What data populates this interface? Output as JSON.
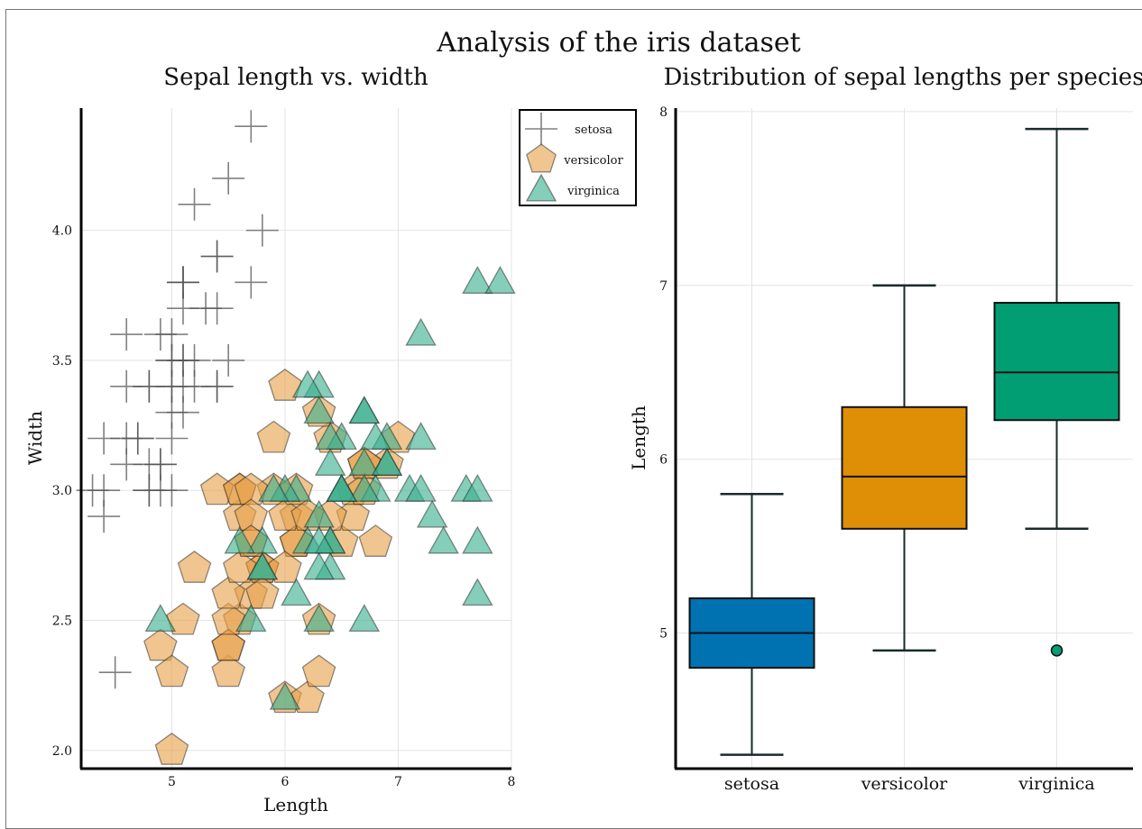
{
  "title": "Analysis of the iris dataset",
  "colors": {
    "setosa": "#555555",
    "versicolor": "#e6a14a",
    "virginica": "#3ab08e",
    "box_setosa": "#0072b2",
    "box_versicolor": "#de8f05",
    "box_virginica": "#029e73"
  },
  "chart_data": [
    {
      "type": "scatter",
      "title": "Sepal length vs. width",
      "xlabel": "Length",
      "ylabel": "Width",
      "xlim": [
        4.2,
        8.0
      ],
      "ylim": [
        1.93,
        4.47
      ],
      "xticks": [
        5,
        6,
        7,
        8
      ],
      "yticks": [
        2.0,
        2.5,
        3.0,
        3.5,
        4.0
      ],
      "xtick_labels": [
        "5",
        "6",
        "7",
        "8"
      ],
      "ytick_labels": [
        "2.0",
        "2.5",
        "3.0",
        "3.5",
        "4.0"
      ],
      "grid": true,
      "legend": "top-right",
      "series": [
        {
          "name": "setosa",
          "marker": "cross",
          "points": [
            [
              5.1,
              3.5
            ],
            [
              4.9,
              3.0
            ],
            [
              4.7,
              3.2
            ],
            [
              4.6,
              3.1
            ],
            [
              5.0,
              3.6
            ],
            [
              5.4,
              3.9
            ],
            [
              4.6,
              3.4
            ],
            [
              5.0,
              3.4
            ],
            [
              4.4,
              2.9
            ],
            [
              4.9,
              3.1
            ],
            [
              5.4,
              3.7
            ],
            [
              4.8,
              3.4
            ],
            [
              4.8,
              3.0
            ],
            [
              4.3,
              3.0
            ],
            [
              5.8,
              4.0
            ],
            [
              5.7,
              4.4
            ],
            [
              5.4,
              3.9
            ],
            [
              5.1,
              3.5
            ],
            [
              5.7,
              3.8
            ],
            [
              5.1,
              3.8
            ],
            [
              5.4,
              3.4
            ],
            [
              5.1,
              3.7
            ],
            [
              4.6,
              3.6
            ],
            [
              5.1,
              3.3
            ],
            [
              4.8,
              3.4
            ],
            [
              5.0,
              3.0
            ],
            [
              5.0,
              3.4
            ],
            [
              5.2,
              3.5
            ],
            [
              5.2,
              3.4
            ],
            [
              4.7,
              3.2
            ],
            [
              4.8,
              3.1
            ],
            [
              5.4,
              3.4
            ],
            [
              5.2,
              4.1
            ],
            [
              5.5,
              4.2
            ],
            [
              4.9,
              3.1
            ],
            [
              5.0,
              3.2
            ],
            [
              5.5,
              3.5
            ],
            [
              4.9,
              3.6
            ],
            [
              4.4,
              3.0
            ],
            [
              5.1,
              3.4
            ],
            [
              5.0,
              3.5
            ],
            [
              4.5,
              2.3
            ],
            [
              4.4,
              3.2
            ],
            [
              5.0,
              3.5
            ],
            [
              5.1,
              3.8
            ],
            [
              4.8,
              3.0
            ],
            [
              5.1,
              3.8
            ],
            [
              4.6,
              3.2
            ],
            [
              5.3,
              3.7
            ],
            [
              5.0,
              3.3
            ]
          ]
        },
        {
          "name": "versicolor",
          "marker": "pentagon",
          "points": [
            [
              7.0,
              3.2
            ],
            [
              6.4,
              3.2
            ],
            [
              6.9,
              3.1
            ],
            [
              5.5,
              2.3
            ],
            [
              6.5,
              2.8
            ],
            [
              5.7,
              2.8
            ],
            [
              6.3,
              3.3
            ],
            [
              4.9,
              2.4
            ],
            [
              6.6,
              2.9
            ],
            [
              5.2,
              2.7
            ],
            [
              5.0,
              2.0
            ],
            [
              5.9,
              3.0
            ],
            [
              6.0,
              2.2
            ],
            [
              6.1,
              2.9
            ],
            [
              5.6,
              2.9
            ],
            [
              6.7,
              3.1
            ],
            [
              5.6,
              3.0
            ],
            [
              5.8,
              2.7
            ],
            [
              6.2,
              2.2
            ],
            [
              5.6,
              2.5
            ],
            [
              5.9,
              3.2
            ],
            [
              6.1,
              2.8
            ],
            [
              6.3,
              2.5
            ],
            [
              6.1,
              2.8
            ],
            [
              6.4,
              2.9
            ],
            [
              6.6,
              3.0
            ],
            [
              6.8,
              2.8
            ],
            [
              6.7,
              3.0
            ],
            [
              6.0,
              2.9
            ],
            [
              5.7,
              2.6
            ],
            [
              5.5,
              2.4
            ],
            [
              5.5,
              2.4
            ],
            [
              5.8,
              2.7
            ],
            [
              6.0,
              2.7
            ],
            [
              5.4,
              3.0
            ],
            [
              6.0,
              3.4
            ],
            [
              6.7,
              3.1
            ],
            [
              6.3,
              2.3
            ],
            [
              5.6,
              3.0
            ],
            [
              5.5,
              2.5
            ],
            [
              5.5,
              2.6
            ],
            [
              6.1,
              3.0
            ],
            [
              5.8,
              2.6
            ],
            [
              5.0,
              2.3
            ],
            [
              5.6,
              2.7
            ],
            [
              5.7,
              3.0
            ],
            [
              5.7,
              2.9
            ],
            [
              6.2,
              2.9
            ],
            [
              5.1,
              2.5
            ],
            [
              5.7,
              2.8
            ]
          ]
        },
        {
          "name": "virginica",
          "marker": "triangle",
          "points": [
            [
              6.3,
              3.3
            ],
            [
              5.8,
              2.7
            ],
            [
              7.1,
              3.0
            ],
            [
              6.3,
              2.9
            ],
            [
              6.5,
              3.0
            ],
            [
              7.6,
              3.0
            ],
            [
              4.9,
              2.5
            ],
            [
              7.3,
              2.9
            ],
            [
              6.7,
              2.5
            ],
            [
              7.2,
              3.6
            ],
            [
              6.5,
              3.2
            ],
            [
              6.4,
              2.7
            ],
            [
              6.8,
              3.0
            ],
            [
              5.7,
              2.5
            ],
            [
              5.8,
              2.8
            ],
            [
              6.4,
              3.2
            ],
            [
              6.5,
              3.0
            ],
            [
              7.7,
              3.8
            ],
            [
              7.7,
              2.6
            ],
            [
              6.0,
              2.2
            ],
            [
              6.9,
              3.2
            ],
            [
              5.6,
              2.8
            ],
            [
              7.7,
              2.8
            ],
            [
              6.3,
              2.7
            ],
            [
              6.7,
              3.3
            ],
            [
              7.2,
              3.2
            ],
            [
              6.2,
              2.8
            ],
            [
              6.1,
              3.0
            ],
            [
              6.4,
              2.8
            ],
            [
              7.2,
              3.0
            ],
            [
              7.4,
              2.8
            ],
            [
              7.9,
              3.8
            ],
            [
              6.4,
              2.8
            ],
            [
              6.3,
              2.8
            ],
            [
              6.1,
              2.6
            ],
            [
              7.7,
              3.0
            ],
            [
              6.3,
              3.4
            ],
            [
              6.4,
              3.1
            ],
            [
              6.0,
              3.0
            ],
            [
              6.9,
              3.1
            ],
            [
              6.7,
              3.1
            ],
            [
              6.9,
              3.1
            ],
            [
              5.8,
              2.7
            ],
            [
              6.8,
              3.2
            ],
            [
              6.7,
              3.3
            ],
            [
              6.7,
              3.0
            ],
            [
              6.3,
              2.5
            ],
            [
              6.5,
              3.0
            ],
            [
              6.2,
              3.4
            ],
            [
              5.9,
              3.0
            ]
          ]
        }
      ]
    },
    {
      "type": "box",
      "title": "Distribution of sepal lengths per species",
      "xlabel": "",
      "ylabel": "Length",
      "ylim": [
        4.22,
        8.02
      ],
      "yticks": [
        5,
        6,
        7,
        8
      ],
      "ytick_labels": [
        "5",
        "6",
        "7",
        "8"
      ],
      "grid": true,
      "categories": [
        "setosa",
        "versicolor",
        "virginica"
      ],
      "boxes": [
        {
          "name": "setosa",
          "min": 4.3,
          "q1": 4.8,
          "median": 5.0,
          "q3": 5.2,
          "max": 5.8,
          "outliers": []
        },
        {
          "name": "versicolor",
          "min": 4.9,
          "q1": 5.6,
          "median": 5.9,
          "q3": 6.3,
          "max": 7.0,
          "outliers": []
        },
        {
          "name": "virginica",
          "min": 5.6,
          "q1": 6.225,
          "median": 6.5,
          "q3": 6.9,
          "max": 7.9,
          "outliers": [
            4.9
          ]
        }
      ]
    }
  ]
}
